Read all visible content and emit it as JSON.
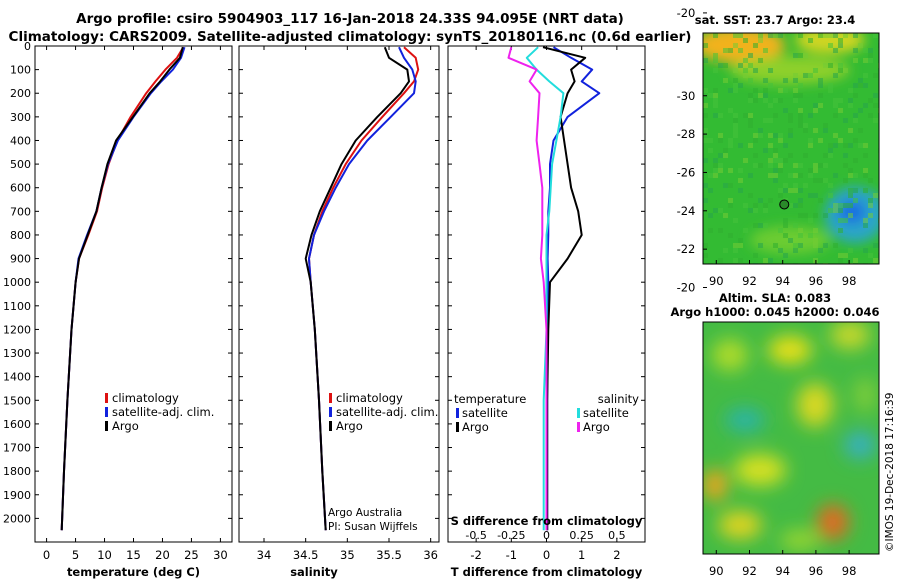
{
  "header": {
    "line1": "Argo profile: csiro 5904903_117 16-Jan-2018 24.33S 94.095E (NRT data)",
    "line2": "Climatology: CARS2009. Satellite-adjusted climatology: synTS_20180116.nc (0.6d earlier)"
  },
  "colors": {
    "climatology": "#dd1111",
    "satellite": "#1122dd",
    "argo": "#000000",
    "sal_satellite": "#22dddd",
    "sal_argo": "#ee22ee"
  },
  "credits": {
    "line1": "Argo Australia",
    "line2": "PI: Susan Wijffels"
  },
  "stamp": "©IMOS 19-Dec-2018 17:16:39",
  "maps": {
    "sst_title": "sat. SST: 23.7 Argo: 23.4",
    "sla_title_1": "Altim. SLA: 0.083",
    "sla_title_2": "Argo h1000: 0.045 h2000: 0.046",
    "x_ticks": [
      "90",
      "92",
      "94",
      "96",
      "98"
    ],
    "y_ticks": [
      "-20",
      "-22",
      "-24",
      "-26",
      "-28",
      "-30"
    ],
    "profile_lon": 94.095,
    "profile_lat": -24.33
  },
  "chart_data": [
    {
      "type": "line",
      "name": "temperature",
      "xlabel": "temperature (deg C)",
      "ylabel": "",
      "xlim": [
        -2,
        32
      ],
      "ylim": [
        2100,
        0
      ],
      "x_ticks": [
        0,
        5,
        10,
        15,
        20,
        25,
        30
      ],
      "y_ticks": [
        0,
        100,
        200,
        300,
        400,
        500,
        600,
        700,
        800,
        900,
        1000,
        1100,
        1200,
        1300,
        1400,
        1500,
        1600,
        1700,
        1800,
        1900,
        2000
      ],
      "legend": [
        "climatology",
        "satellite-adj. clim.",
        "Argo"
      ],
      "series": [
        {
          "name": "climatology",
          "color": "#dd1111",
          "depth": [
            5,
            50,
            100,
            150,
            200,
            300,
            400,
            500,
            600,
            700,
            800,
            900,
            1000,
            1200,
            1500,
            1800,
            2050
          ],
          "values": [
            23.6,
            22.5,
            20.5,
            18.8,
            17.2,
            14.5,
            12.2,
            10.7,
            9.6,
            8.7,
            7.2,
            5.6,
            5.0,
            4.3,
            3.6,
            3.0,
            2.6
          ]
        },
        {
          "name": "satellite-adj. clim.",
          "color": "#1122dd",
          "depth": [
            5,
            50,
            100,
            150,
            200,
            300,
            400,
            500,
            600,
            700,
            800,
            900,
            1000,
            1200,
            1500,
            1800,
            2050
          ],
          "values": [
            23.8,
            23.2,
            21.8,
            19.8,
            18.0,
            15.0,
            12.3,
            10.6,
            9.5,
            8.6,
            7.0,
            5.5,
            5.0,
            4.3,
            3.6,
            3.0,
            2.6
          ]
        },
        {
          "name": "Argo",
          "color": "#000000",
          "depth": [
            5,
            50,
            100,
            150,
            200,
            300,
            400,
            500,
            600,
            700,
            800,
            900,
            1000,
            1200,
            1500,
            1800,
            2050
          ],
          "values": [
            23.5,
            23.0,
            21.2,
            19.6,
            17.8,
            14.9,
            12.0,
            10.5,
            9.5,
            8.6,
            7.1,
            5.6,
            5.0,
            4.3,
            3.6,
            3.0,
            2.6
          ]
        }
      ]
    },
    {
      "type": "line",
      "name": "salinity",
      "xlabel": "salinity",
      "ylabel": "",
      "xlim": [
        33.7,
        36.1
      ],
      "ylim": [
        2100,
        0
      ],
      "x_ticks": [
        34,
        34.5,
        35,
        35.5,
        36
      ],
      "y_ticks": [
        0,
        100,
        200,
        300,
        400,
        500,
        600,
        700,
        800,
        900,
        1000,
        1100,
        1200,
        1300,
        1400,
        1500,
        1600,
        1700,
        1800,
        1900,
        2000
      ],
      "legend": [
        "climatology",
        "satellite-adj. clim.",
        "Argo"
      ],
      "series": [
        {
          "name": "climatology",
          "color": "#dd1111",
          "depth": [
            5,
            50,
            100,
            150,
            200,
            300,
            400,
            500,
            600,
            700,
            800,
            900,
            1000,
            1200,
            1500,
            1800,
            2050
          ],
          "values": [
            35.68,
            35.82,
            35.85,
            35.8,
            35.68,
            35.42,
            35.17,
            34.98,
            34.83,
            34.7,
            34.6,
            34.54,
            34.56,
            34.61,
            34.66,
            34.7,
            34.74
          ]
        },
        {
          "name": "satellite-adj. clim.",
          "color": "#1122dd",
          "depth": [
            5,
            50,
            100,
            150,
            200,
            300,
            400,
            500,
            600,
            700,
            800,
            900,
            1000,
            1200,
            1500,
            1800,
            2050
          ],
          "values": [
            35.62,
            35.68,
            35.78,
            35.82,
            35.8,
            35.52,
            35.24,
            35.02,
            34.86,
            34.72,
            34.6,
            34.54,
            34.56,
            34.61,
            34.66,
            34.7,
            34.74
          ]
        },
        {
          "name": "Argo",
          "color": "#000000",
          "depth": [
            5,
            50,
            100,
            150,
            200,
            300,
            400,
            500,
            600,
            700,
            800,
            900,
            1000,
            1200,
            1500,
            1800,
            2050
          ],
          "values": [
            35.45,
            35.5,
            35.72,
            35.74,
            35.64,
            35.36,
            35.1,
            34.93,
            34.8,
            34.67,
            34.57,
            34.5,
            34.56,
            34.61,
            34.66,
            34.7,
            34.74
          ]
        }
      ]
    },
    {
      "type": "line",
      "name": "differences",
      "xlabel": "T difference from climatology",
      "xlabel2": "S difference from climatology",
      "ylabel": "",
      "xlim": [
        -2.8,
        2.8
      ],
      "ylim": [
        2100,
        0
      ],
      "x_ticks": [
        -2,
        -1,
        0,
        1,
        2
      ],
      "x_ticks_s": [
        "-0.5",
        "-0.25",
        "0",
        "0.25",
        "0.5"
      ],
      "x_ticks_s_values": [
        -0.5,
        -0.25,
        0,
        0.25,
        0.5
      ],
      "s_scale": 4,
      "y_ticks": [
        0,
        100,
        200,
        300,
        400,
        500,
        600,
        700,
        800,
        900,
        1000,
        1100,
        1200,
        1300,
        1400,
        1500,
        1600,
        1700,
        1800,
        1900,
        2000
      ],
      "legend_temperature_title": "temperature",
      "legend_salinity_title": "salinity",
      "legend_temperature": [
        "satellite",
        "Argo"
      ],
      "legend_salinity": [
        "satellite",
        "Argo"
      ],
      "series": [
        {
          "name": "T satellite",
          "color": "#1122dd",
          "depth": [
            5,
            50,
            100,
            150,
            200,
            300,
            400,
            500,
            600,
            700,
            800,
            900,
            1000,
            1200,
            1500,
            1800,
            2050
          ],
          "values": [
            0.2,
            0.7,
            1.3,
            1.0,
            1.5,
            0.6,
            0.2,
            0.1,
            0.1,
            0.05,
            0.05,
            0.03,
            0.05,
            0.03,
            0.02,
            0.02,
            0.02
          ]
        },
        {
          "name": "T Argo",
          "color": "#000000",
          "depth": [
            5,
            50,
            100,
            150,
            200,
            300,
            400,
            500,
            600,
            700,
            800,
            900,
            1000,
            1200,
            1500,
            1800,
            2050
          ],
          "values": [
            -0.1,
            1.1,
            0.7,
            0.8,
            0.6,
            0.4,
            0.5,
            0.6,
            0.7,
            0.9,
            1.0,
            0.6,
            0.1,
            0.05,
            0.02,
            0.02,
            0.02
          ]
        },
        {
          "name": "S satellite",
          "color": "#22dddd",
          "depth": [
            5,
            50,
            100,
            150,
            200,
            300,
            400,
            500,
            600,
            700,
            800,
            900,
            1000,
            1200,
            1500,
            1800,
            2050
          ],
          "values": [
            -0.06,
            -0.14,
            -0.07,
            0.02,
            0.12,
            0.1,
            0.07,
            0.04,
            0.03,
            0.02,
            0.0,
            0.0,
            0.0,
            0.0,
            -0.02,
            -0.02,
            -0.02
          ]
        },
        {
          "name": "S Argo",
          "color": "#ee22ee",
          "depth": [
            5,
            50,
            100,
            150,
            200,
            300,
            400,
            500,
            600,
            700,
            800,
            900,
            1000,
            1100,
            1200,
            1500,
            2050
          ],
          "values": [
            -0.25,
            -0.27,
            -0.07,
            -0.12,
            -0.05,
            -0.06,
            -0.07,
            -0.05,
            -0.03,
            -0.03,
            -0.03,
            -0.04,
            -0.02,
            -0.01,
            0.0,
            0.0,
            0.0
          ]
        }
      ]
    }
  ]
}
